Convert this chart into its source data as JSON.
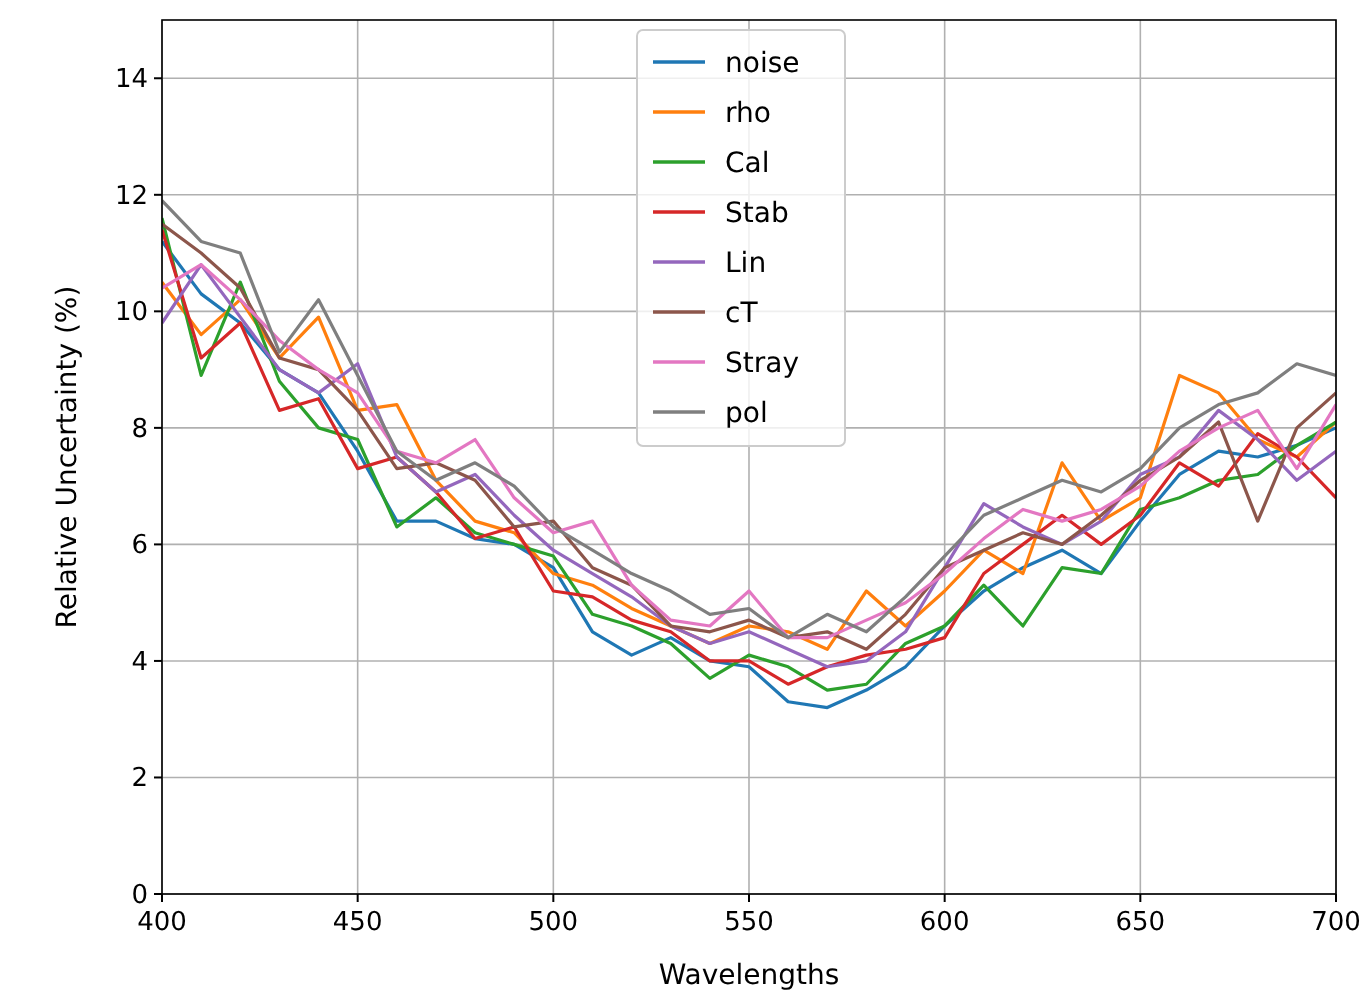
{
  "chart_data": {
    "type": "line",
    "xlabel": "Wavelengths",
    "ylabel": "Relative Uncertainty (%)",
    "x": [
      400,
      410,
      420,
      430,
      440,
      450,
      460,
      470,
      480,
      490,
      500,
      510,
      520,
      530,
      540,
      550,
      560,
      570,
      580,
      590,
      600,
      610,
      620,
      630,
      640,
      650,
      660,
      670,
      680,
      690,
      700
    ],
    "xlim": [
      400,
      700
    ],
    "xticks": [
      400,
      450,
      500,
      550,
      600,
      650,
      700
    ],
    "ylim": [
      0,
      15
    ],
    "yticks": [
      0,
      2,
      4,
      6,
      8,
      10,
      12,
      14
    ],
    "grid": true,
    "legend": "top",
    "line_style": "solid",
    "marker": "none",
    "series": [
      {
        "name": "noise",
        "color": "#1f77b4",
        "values": [
          11.2,
          10.3,
          9.8,
          9.0,
          8.6,
          7.6,
          6.4,
          6.4,
          6.1,
          6.0,
          5.6,
          4.5,
          4.1,
          4.4,
          4.0,
          3.9,
          3.3,
          3.2,
          3.5,
          3.9,
          4.6,
          5.2,
          5.6,
          5.9,
          5.5,
          6.4,
          7.2,
          7.6,
          7.5,
          7.7,
          8.0
        ]
      },
      {
        "name": "rho",
        "color": "#ff7f0e",
        "values": [
          10.5,
          9.6,
          10.2,
          9.2,
          9.9,
          8.3,
          8.4,
          7.1,
          6.4,
          6.2,
          5.5,
          5.3,
          4.9,
          4.6,
          4.3,
          4.6,
          4.5,
          4.2,
          5.2,
          4.6,
          5.2,
          5.9,
          5.5,
          7.4,
          6.4,
          6.8,
          8.9,
          8.6,
          7.8,
          7.5,
          8.1
        ]
      },
      {
        "name": "Cal",
        "color": "#2ca02c",
        "values": [
          11.6,
          8.9,
          10.5,
          8.8,
          8.0,
          7.8,
          6.3,
          6.8,
          6.2,
          6.0,
          5.8,
          4.8,
          4.6,
          4.3,
          3.7,
          4.1,
          3.9,
          3.5,
          3.6,
          4.3,
          4.6,
          5.3,
          4.6,
          5.6,
          5.5,
          6.6,
          6.8,
          7.1,
          7.2,
          7.7,
          8.1
        ]
      },
      {
        "name": "Stab",
        "color": "#d62728",
        "values": [
          11.4,
          9.2,
          9.8,
          8.3,
          8.5,
          7.3,
          7.5,
          6.9,
          6.1,
          6.3,
          5.2,
          5.1,
          4.7,
          4.5,
          4.0,
          4.0,
          3.6,
          3.9,
          4.1,
          4.2,
          4.4,
          5.5,
          6.0,
          6.5,
          6.0,
          6.5,
          7.4,
          7.0,
          7.9,
          7.5,
          6.8
        ]
      },
      {
        "name": "Lin",
        "color": "#9467bd",
        "values": [
          9.8,
          10.8,
          9.9,
          9.0,
          8.6,
          9.1,
          7.5,
          6.9,
          7.2,
          6.5,
          5.9,
          5.5,
          5.1,
          4.6,
          4.3,
          4.5,
          4.2,
          3.9,
          4.0,
          4.5,
          5.6,
          6.7,
          6.3,
          6.0,
          6.4,
          7.2,
          7.5,
          8.3,
          7.8,
          7.1,
          7.6
        ]
      },
      {
        "name": "cT",
        "color": "#8c564b",
        "values": [
          11.5,
          11.0,
          10.4,
          9.2,
          9.0,
          8.3,
          7.3,
          7.4,
          7.1,
          6.3,
          6.4,
          5.6,
          5.3,
          4.6,
          4.5,
          4.7,
          4.4,
          4.5,
          4.2,
          4.8,
          5.6,
          5.9,
          6.2,
          6.0,
          6.5,
          7.1,
          7.5,
          8.1,
          6.4,
          8.0,
          8.6
        ]
      },
      {
        "name": "Stray",
        "color": "#e377c2",
        "values": [
          10.4,
          10.8,
          10.2,
          9.5,
          9.0,
          8.6,
          7.6,
          7.4,
          7.8,
          6.8,
          6.2,
          6.4,
          5.3,
          4.7,
          4.6,
          5.2,
          4.4,
          4.4,
          4.7,
          5.0,
          5.5,
          6.1,
          6.6,
          6.4,
          6.6,
          7.0,
          7.6,
          8.0,
          8.3,
          7.3,
          8.4
        ]
      },
      {
        "name": "pol",
        "color": "#7f7f7f",
        "values": [
          11.9,
          11.2,
          11.0,
          9.3,
          10.2,
          8.9,
          7.6,
          7.1,
          7.4,
          7.0,
          6.3,
          5.9,
          5.5,
          5.2,
          4.8,
          4.9,
          4.4,
          4.8,
          4.5,
          5.1,
          5.8,
          6.5,
          6.8,
          7.1,
          6.9,
          7.3,
          8.0,
          8.4,
          8.6,
          9.1,
          8.9
        ]
      }
    ]
  }
}
